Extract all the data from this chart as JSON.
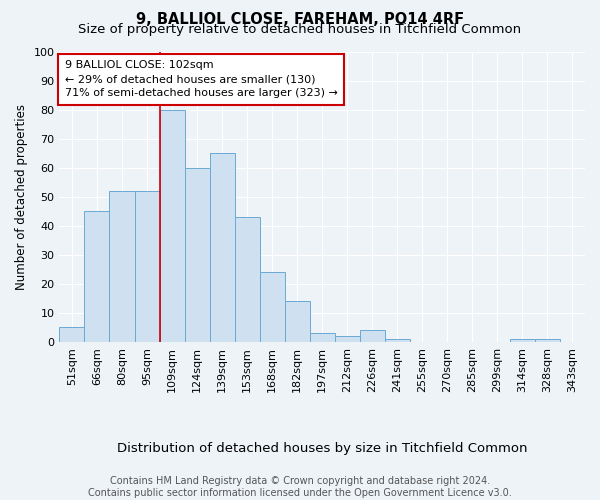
{
  "title": "9, BALLIOL CLOSE, FAREHAM, PO14 4RF",
  "subtitle": "Size of property relative to detached houses in Titchfield Common",
  "xlabel": "Distribution of detached houses by size in Titchfield Common",
  "ylabel": "Number of detached properties",
  "categories": [
    "51sqm",
    "66sqm",
    "80sqm",
    "95sqm",
    "109sqm",
    "124sqm",
    "139sqm",
    "153sqm",
    "168sqm",
    "182sqm",
    "197sqm",
    "212sqm",
    "226sqm",
    "241sqm",
    "255sqm",
    "270sqm",
    "285sqm",
    "299sqm",
    "314sqm",
    "328sqm",
    "343sqm"
  ],
  "values": [
    5,
    45,
    52,
    52,
    80,
    60,
    65,
    43,
    24,
    14,
    3,
    2,
    4,
    1,
    0,
    0,
    0,
    0,
    1,
    1,
    0
  ],
  "bar_color": "#cfe0f0",
  "bar_edge_color": "#6aaad4",
  "annotation_text": "9 BALLIOL CLOSE: 102sqm\n← 29% of detached houses are smaller (130)\n71% of semi-detached houses are larger (323) →",
  "annotation_box_color": "#ffffff",
  "annotation_box_edge_color": "#cc0000",
  "vline_color": "#cc0000",
  "footer_text": "Contains HM Land Registry data © Crown copyright and database right 2024.\nContains public sector information licensed under the Open Government Licence v3.0.",
  "ylim": [
    0,
    100
  ],
  "background_color": "#eef3f8",
  "grid_color": "#ffffff",
  "title_fontsize": 10.5,
  "subtitle_fontsize": 9.5,
  "xlabel_fontsize": 9.5,
  "ylabel_fontsize": 8.5,
  "tick_fontsize": 8,
  "annotation_fontsize": 8,
  "footer_fontsize": 7
}
